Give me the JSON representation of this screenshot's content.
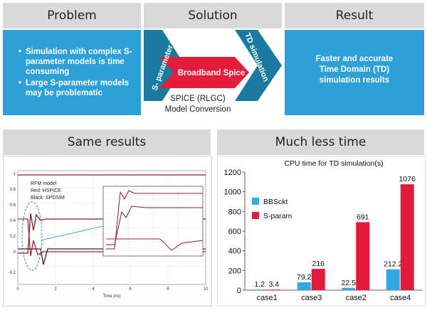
{
  "top": {
    "problem": {
      "title": "Problem",
      "bullets": [
        "Simulation with complex S-parameter models is time consuming",
        "Large S-parameter models may be problematic"
      ]
    },
    "solution": {
      "title": "Solution",
      "left_chevron": "S- parameter",
      "center_arrow": "Broadband Spice",
      "right_chevron": "TD simulation",
      "caption_line1": "SPICE (RLGC)",
      "caption_line2": "Model Conversion"
    },
    "result": {
      "title": "Result",
      "lines": [
        "Faster and accurate",
        "Time Domain (TD)",
        "simulation results"
      ]
    }
  },
  "same_results": {
    "title": "Same results",
    "legend_lines": [
      "RFM model",
      "Red: HSPICE",
      "Black: SPDSIM"
    ],
    "x_ticks": [
      "0",
      "2",
      "4",
      "6",
      "8",
      "10"
    ],
    "y_ticks": [
      "1",
      "0.8",
      "0.6",
      "0.4",
      "0.2",
      "0",
      "-0.2"
    ],
    "x_label": "Time (ns)"
  },
  "much_less_time": {
    "title": "Much less time"
  },
  "chart_data": {
    "type": "bar",
    "title": "CPU time for TD simulation(s)",
    "categories": [
      "case1",
      "case3",
      "case2",
      "case4"
    ],
    "series": [
      {
        "name": "BBSckt",
        "values": [
          1.2,
          79.2,
          22.5,
          212.2
        ],
        "color": "#35a9e1"
      },
      {
        "name": "S-param",
        "values": [
          3.4,
          216,
          691,
          1076
        ],
        "color": "#e31b3a"
      }
    ],
    "value_labels": [
      [
        "1.2",
        "79.2",
        "22.5",
        "212.2"
      ],
      [
        "3.4",
        "216",
        "691",
        "1076"
      ]
    ],
    "ylim": [
      0,
      1200
    ],
    "yticks": [
      "0",
      "200",
      "400",
      "600",
      "800",
      "1000",
      "1200"
    ],
    "legend_position": "top-left",
    "grid": false
  }
}
